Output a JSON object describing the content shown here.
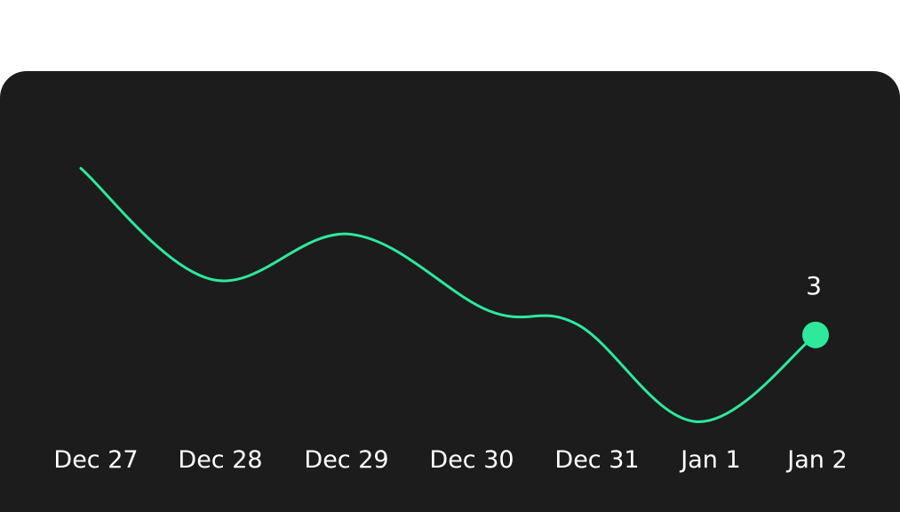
{
  "chart_data": {
    "type": "line",
    "title": "",
    "xlabel": "",
    "ylabel": "",
    "categories": [
      "Dec 27",
      "Dec 28",
      "Dec 29",
      "Dec 30",
      "Dec 31",
      "Jan 1",
      "Jan 2"
    ],
    "series": [
      {
        "values": [
          7.8,
          4.6,
          5.9,
          3.7,
          3.3,
          0.5,
          3
        ]
      }
    ],
    "highlight": {
      "index": 6,
      "label": "3"
    },
    "ylim": [
      -2.1,
      10.6
    ],
    "grid": false,
    "legend": "none",
    "colors": {
      "background": "#1c1c1c",
      "line": "#2ee89c",
      "text": "#ffffff"
    }
  }
}
